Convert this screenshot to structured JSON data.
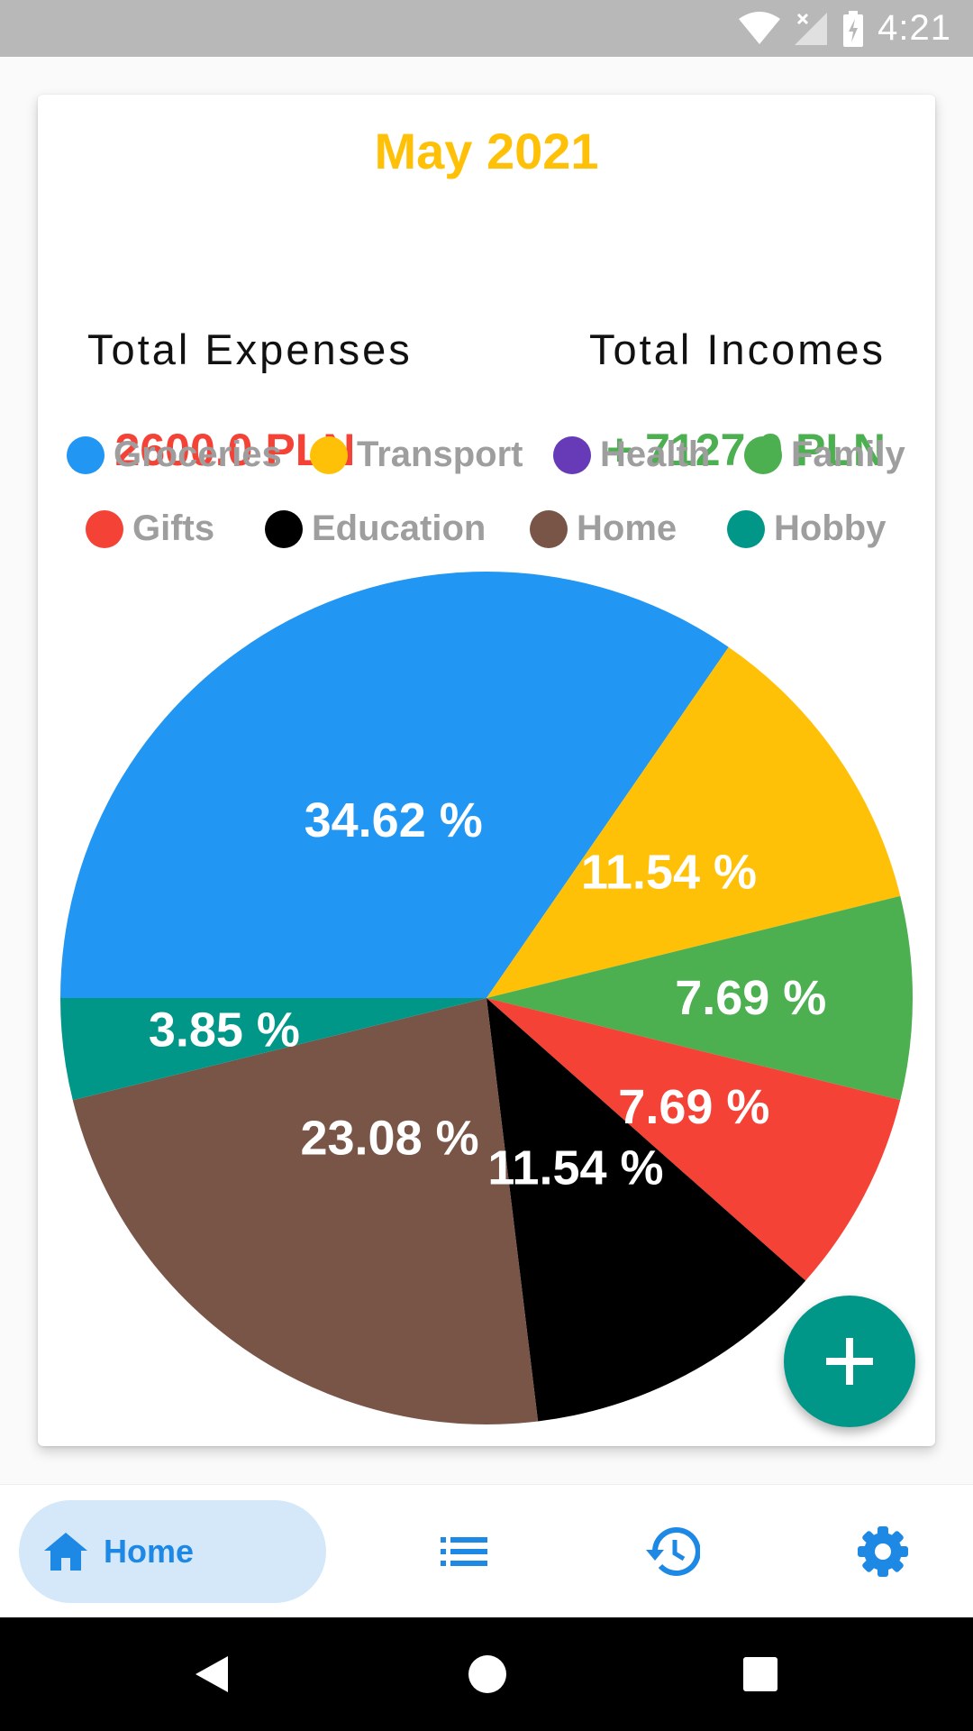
{
  "status_bar": {
    "time": "4:21"
  },
  "card": {
    "month": "May 2021",
    "expenses_label": "Total Expenses",
    "incomes_label": "Total Incomes",
    "expenses_value": "- 2600.0 PLN",
    "incomes_value": "+ 7127.0 PLN",
    "expenses_color": "#f44336",
    "incomes_color": "#4caf50"
  },
  "legend": [
    {
      "name": "Groceries",
      "color": "#2196f3"
    },
    {
      "name": "Transport",
      "color": "#ffc107"
    },
    {
      "name": "Health",
      "color": "#673ab7"
    },
    {
      "name": "Family",
      "color": "#4caf50"
    },
    {
      "name": "Gifts",
      "color": "#f44336"
    },
    {
      "name": "Education",
      "color": "#000000"
    },
    {
      "name": "Home",
      "color": "#795548"
    },
    {
      "name": "Hobby",
      "color": "#009688"
    }
  ],
  "chart_data": {
    "type": "pie",
    "categories": [
      "Groceries",
      "Transport",
      "Family",
      "Gifts",
      "Education",
      "Home",
      "Hobby"
    ],
    "values": [
      34.62,
      11.54,
      7.69,
      7.69,
      11.54,
      23.08,
      3.85
    ],
    "labels": [
      "34.62 %",
      "11.54 %",
      "7.69 %",
      "7.69 %",
      "11.54 %",
      "23.08 %",
      "3.85 %"
    ],
    "colors": [
      "#2196f3",
      "#ffc107",
      "#4caf50",
      "#f44336",
      "#000000",
      "#795548",
      "#009688"
    ]
  },
  "bottom_nav": {
    "home_label": "Home",
    "active_color": "#1e88e5",
    "items": [
      "home-icon",
      "list-icon",
      "history-icon",
      "settings-icon"
    ]
  }
}
